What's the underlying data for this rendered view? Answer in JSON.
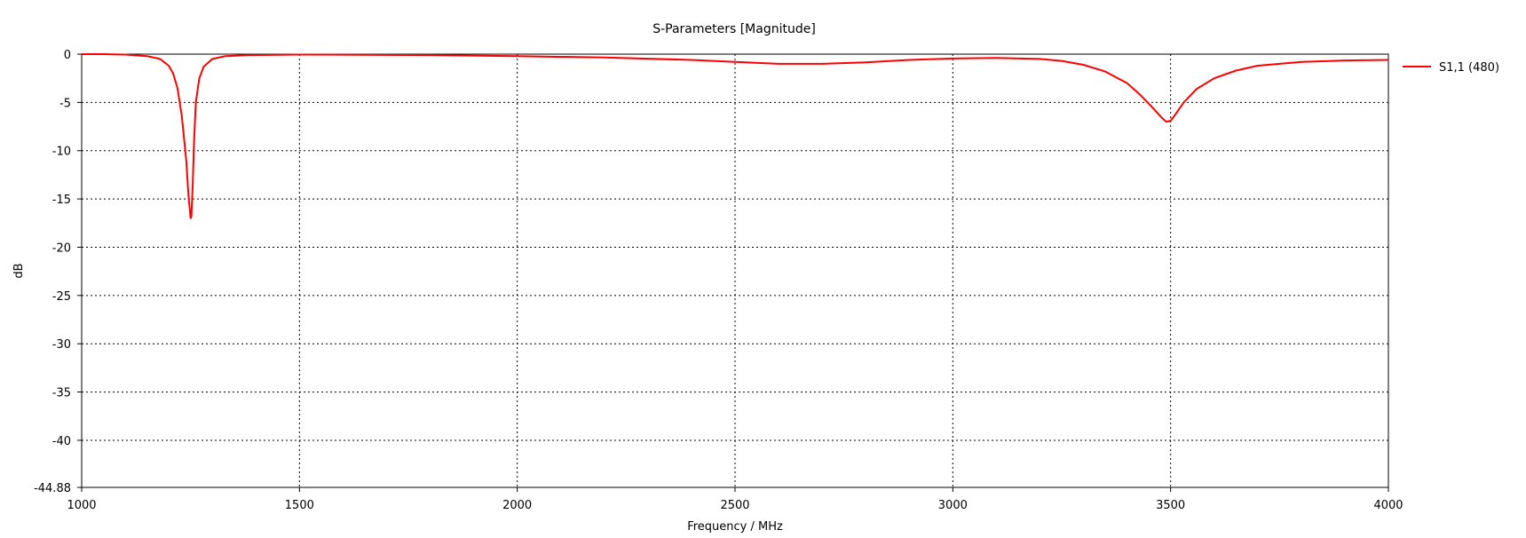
{
  "chart_data": {
    "type": "line",
    "title": "S-Parameters [Magnitude]",
    "xlabel": "Frequency / MHz",
    "ylabel": "dB",
    "xlim": [
      1000,
      4000
    ],
    "ylim": [
      -44.88,
      0
    ],
    "x_ticks": [
      1000,
      1500,
      2000,
      2500,
      3000,
      3500,
      4000
    ],
    "y_ticks": [
      0,
      -5,
      -10,
      -15,
      -20,
      -25,
      -30,
      -35,
      -40
    ],
    "y_min_label": "-44.88",
    "grid": true,
    "legend_position": "top-right",
    "series": [
      {
        "name": "S1,1 (480)",
        "color": "#ff0000",
        "x": [
          1000,
          1050,
          1100,
          1150,
          1180,
          1200,
          1210,
          1220,
          1230,
          1240,
          1245,
          1250,
          1252,
          1255,
          1258,
          1262,
          1270,
          1280,
          1300,
          1330,
          1380,
          1500,
          1800,
          2000,
          2200,
          2400,
          2500,
          2600,
          2700,
          2800,
          2900,
          3000,
          3100,
          3200,
          3250,
          3300,
          3350,
          3400,
          3430,
          3460,
          3480,
          3490,
          3500,
          3510,
          3530,
          3560,
          3600,
          3650,
          3700,
          3800,
          3900,
          4000
        ],
        "y": [
          0.0,
          0.0,
          -0.05,
          -0.2,
          -0.5,
          -1.2,
          -2.0,
          -3.5,
          -6.5,
          -11.0,
          -14.5,
          -17.0,
          -16.8,
          -13.5,
          -9.0,
          -5.0,
          -2.5,
          -1.3,
          -0.5,
          -0.2,
          -0.1,
          -0.05,
          -0.1,
          -0.2,
          -0.35,
          -0.6,
          -0.8,
          -1.0,
          -1.0,
          -0.85,
          -0.6,
          -0.45,
          -0.4,
          -0.5,
          -0.7,
          -1.1,
          -1.8,
          -3.0,
          -4.2,
          -5.6,
          -6.6,
          -7.0,
          -6.9,
          -6.3,
          -5.0,
          -3.6,
          -2.5,
          -1.7,
          -1.2,
          -0.8,
          -0.65,
          -0.6
        ]
      }
    ]
  }
}
